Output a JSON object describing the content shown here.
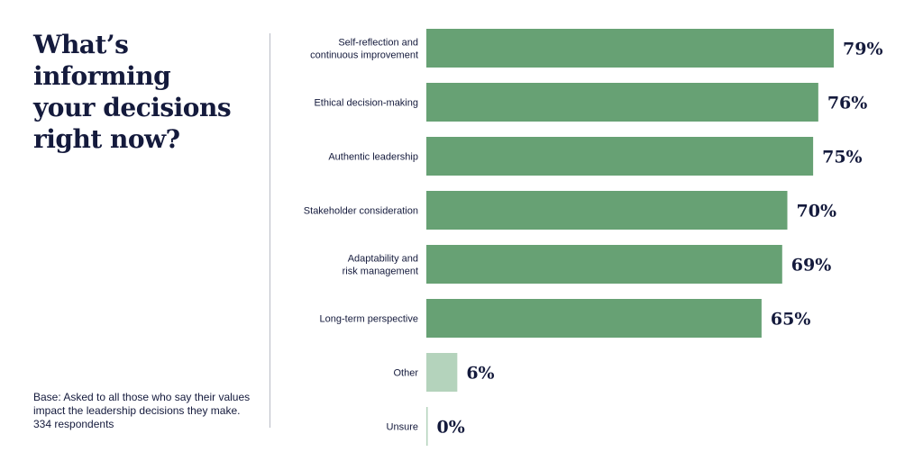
{
  "title_lines": [
    "What’s",
    "informing",
    "your decisions",
    "right now?"
  ],
  "note_lines": [
    "Base: Asked to all those who say their values",
    "impact the leadership decisions they make.",
    "334 respondents"
  ],
  "colors": {
    "bar_main": "#67a174",
    "bar_secondary": "#b4d3bc",
    "text": "#141a3c"
  },
  "chart_data": {
    "type": "bar",
    "orientation": "horizontal",
    "title": "What’s informing your decisions right now?",
    "categories": [
      [
        "Self-reflection and",
        "continuous improvement"
      ],
      [
        "Ethical decision-making"
      ],
      [
        "Authentic leadership"
      ],
      [
        "Stakeholder consideration"
      ],
      [
        "Adaptability and",
        "risk management"
      ],
      [
        "Long-term perspective"
      ],
      [
        "Other"
      ],
      [
        "Unsure"
      ]
    ],
    "values": [
      79,
      76,
      75,
      70,
      69,
      65,
      6,
      0
    ],
    "value_labels": [
      "79%",
      "76%",
      "75%",
      "70%",
      "69%",
      "65%",
      "6%",
      "0%"
    ],
    "bar_color_keys": [
      "bar_main",
      "bar_main",
      "bar_main",
      "bar_main",
      "bar_main",
      "bar_main",
      "bar_secondary",
      "bar_secondary"
    ],
    "xlim": [
      0,
      79
    ],
    "grid": false,
    "legend": "none"
  }
}
